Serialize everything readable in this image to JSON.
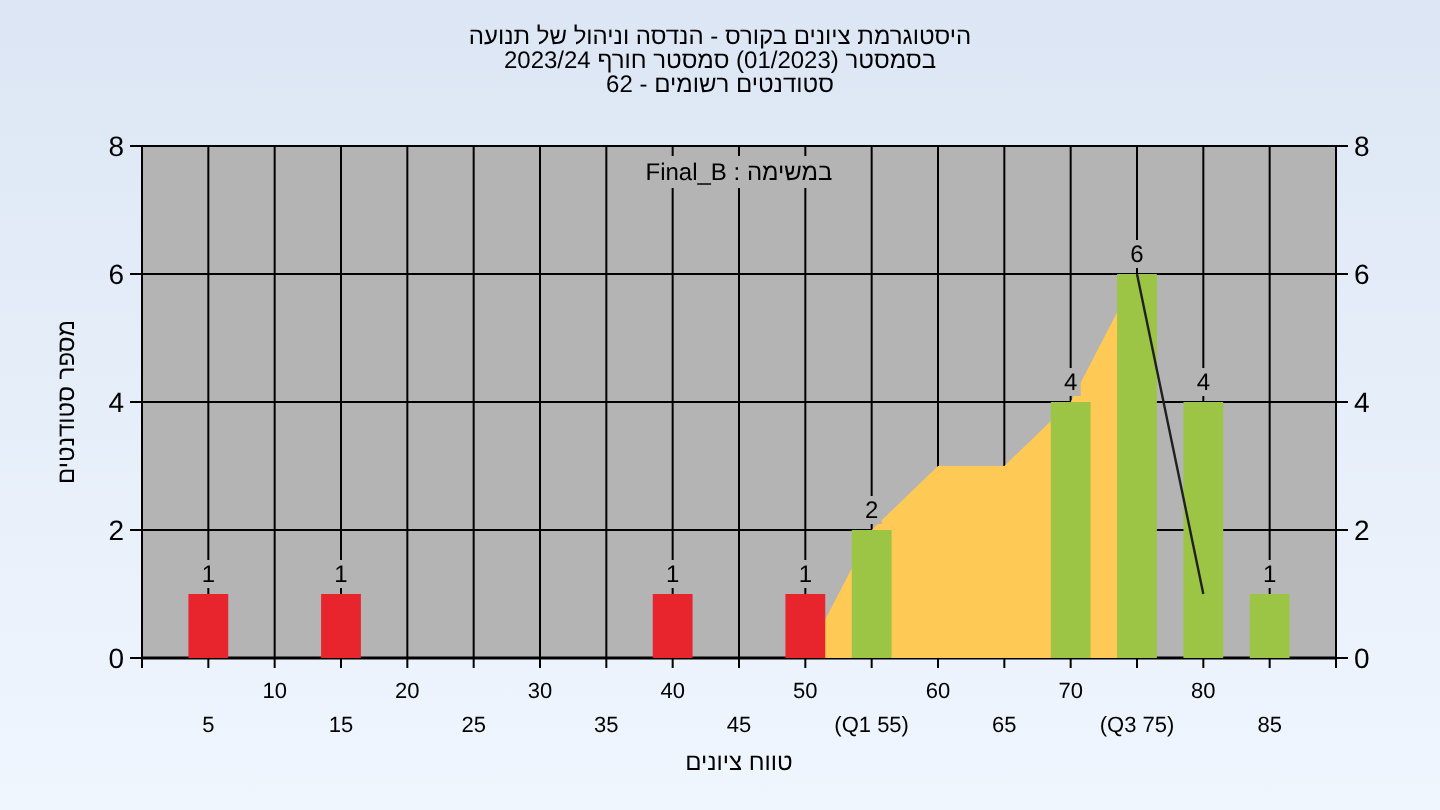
{
  "chart_data": {
    "type": "bar",
    "title": "היסטוגרמת ציונים בקורס - הנדסה וניהול של תנועה\nבסמסטר  (01/2023)  סמסטר חורף 2023/24\nסטודנטים רשומים - 62",
    "xlabel": "טווח ציונים",
    "ylabel": "מספר סטודנטים",
    "annotations": [
      "במשימה : Final_B"
    ],
    "categories": [
      "5",
      "10",
      "15",
      "20",
      "25",
      "30",
      "35",
      "40",
      "45",
      "50",
      "(Q1 55)",
      "60",
      "65",
      "70",
      "(Q3 75)",
      "80",
      "85"
    ],
    "series": [
      {
        "type": "area",
        "color": "#ffc955",
        "values": [
          null,
          null,
          null,
          null,
          null,
          null,
          null,
          null,
          null,
          0,
          2,
          3,
          3,
          4,
          6,
          null,
          null
        ]
      },
      {
        "type": "line",
        "color": "#202020",
        "values": [
          null,
          null,
          null,
          null,
          null,
          null,
          null,
          null,
          null,
          null,
          null,
          null,
          null,
          null,
          6,
          1,
          null
        ]
      },
      {
        "colors": [
          "#e8242c",
          "#e8242c",
          "#e8242c",
          "#e8242c",
          "#e8242c",
          "#e8242c",
          "#e8242c",
          "#e8242c",
          "#e8242c",
          "#e8242c",
          "#9cc445",
          "#9cc445",
          "#9cc445",
          "#9cc445",
          "#9cc445",
          "#9cc445",
          "#9cc445"
        ],
        "values": [
          1,
          0,
          1,
          0,
          0,
          0,
          0,
          1,
          0,
          1,
          2,
          0,
          0,
          4,
          6,
          4,
          1
        ],
        "value_labels": [
          "1",
          null,
          "1",
          null,
          null,
          null,
          null,
          "1",
          null,
          "1",
          "2",
          null,
          null,
          "4",
          "6",
          "4",
          "1"
        ]
      }
    ],
    "ylim": [
      0,
      8
    ],
    "yticks": [
      0,
      2,
      4,
      6,
      8
    ],
    "y2lim": [
      0,
      8
    ],
    "y2ticks": [
      0,
      2,
      4,
      6,
      8
    ],
    "grid": true
  }
}
